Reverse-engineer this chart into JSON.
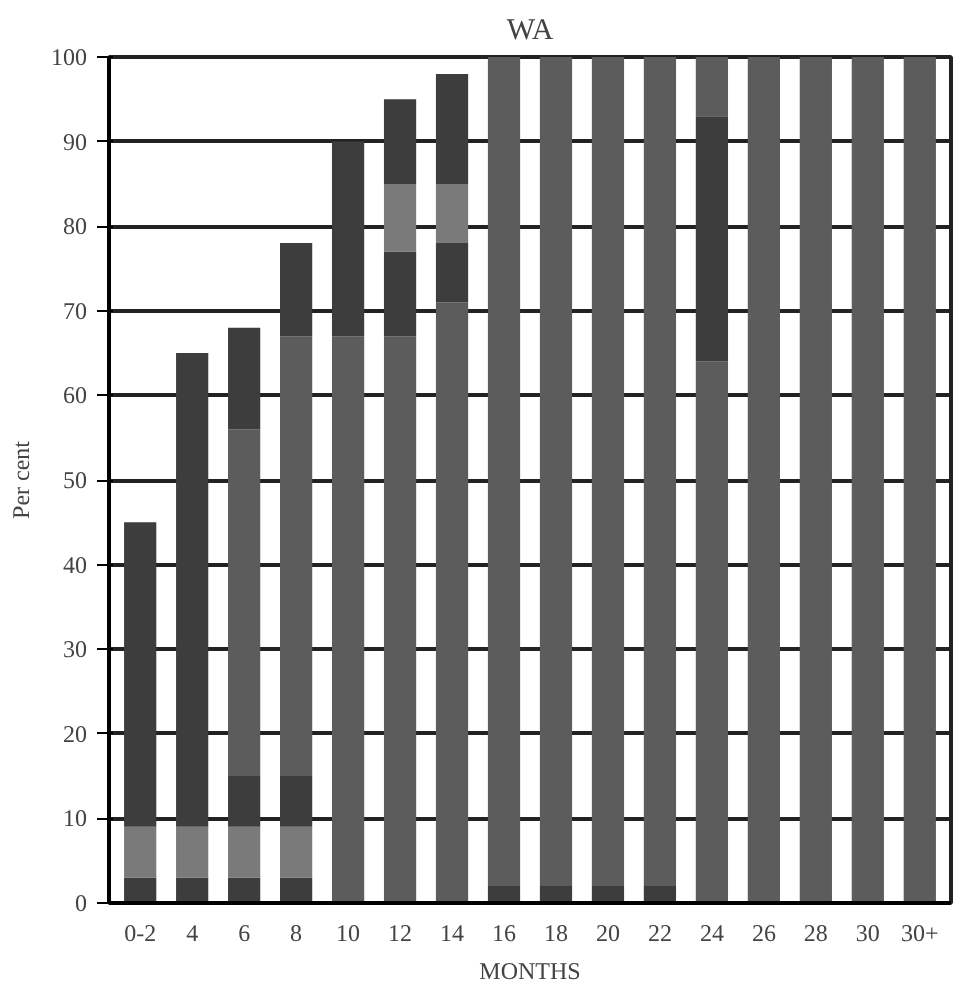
{
  "chart_data": {
    "type": "bar",
    "title": "WA",
    "xlabel": "MONTHS",
    "ylabel": "Per cent",
    "stacked": true,
    "categories": [
      "0-2",
      "4",
      "6",
      "8",
      "10",
      "12",
      "14",
      "16",
      "18",
      "20",
      "22",
      "24",
      "26",
      "28",
      "30",
      "30+"
    ],
    "series": [
      {
        "color": "#3d3d3d",
        "values": [
          3,
          3,
          3,
          3,
          0,
          0,
          0,
          2,
          2,
          2,
          2,
          0,
          0,
          0,
          0,
          0
        ]
      },
      {
        "color": "#7a7a7a",
        "values": [
          6,
          6,
          6,
          6,
          0,
          0,
          0,
          0,
          0,
          0,
          0,
          0,
          0,
          0,
          0,
          0
        ]
      },
      {
        "color": "#3d3d3d",
        "values": [
          0,
          0,
          6,
          6,
          0,
          0,
          0,
          0,
          0,
          0,
          0,
          0,
          0,
          0,
          0,
          0
        ]
      },
      {
        "color": "#5c5c5c",
        "values": [
          0,
          0,
          41,
          52,
          67,
          67,
          71,
          98,
          98,
          98,
          98,
          64,
          100,
          100,
          100,
          100
        ]
      },
      {
        "color": "#3d3d3d",
        "values": [
          0,
          0,
          0,
          0,
          0,
          10,
          7,
          0,
          0,
          0,
          0,
          29,
          0,
          0,
          0,
          0
        ]
      },
      {
        "color": "#7a7a7a",
        "values": [
          0,
          0,
          0,
          0,
          0,
          8,
          7,
          0,
          0,
          0,
          0,
          0,
          0,
          0,
          0,
          0
        ]
      },
      {
        "color": "#3d3d3d",
        "values": [
          36,
          56,
          12,
          11,
          23,
          10,
          13,
          0,
          0,
          0,
          0,
          0,
          0,
          0,
          0,
          0
        ]
      },
      {
        "color": "#5c5c5c",
        "values": [
          0,
          0,
          0,
          0,
          0,
          0,
          0,
          0,
          0,
          0,
          0,
          7,
          0,
          0,
          0,
          0
        ]
      }
    ],
    "ylim": [
      0,
      100
    ],
    "yticks": [
      0,
      10,
      20,
      30,
      40,
      50,
      60,
      70,
      80,
      90,
      100
    ],
    "grid": "y"
  }
}
